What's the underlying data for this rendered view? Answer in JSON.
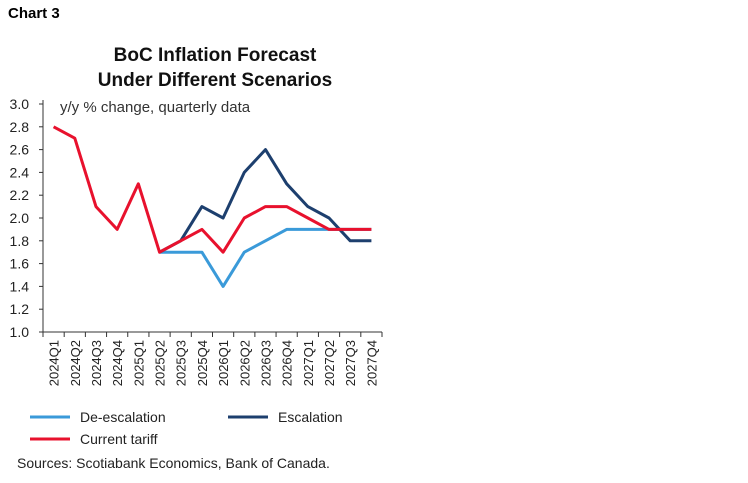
{
  "header": {
    "chart_label": "Chart 3",
    "source": "Sources: Scotiabank Economics, Bank of Canada."
  },
  "chart_data": {
    "type": "line",
    "title": "BoC Inflation Forecast Under Different Scenarios",
    "title_lines": [
      "BoC Inflation Forecast",
      "Under Different Scenarios"
    ],
    "annotation": "y/y % change, quarterly data",
    "categories": [
      "2024Q1",
      "2024Q2",
      "2024Q3",
      "2024Q4",
      "2025Q1",
      "2025Q2",
      "2025Q3",
      "2025Q4",
      "2026Q1",
      "2026Q2",
      "2026Q3",
      "2026Q4",
      "2027Q1",
      "2027Q2",
      "2027Q3",
      "2027Q4"
    ],
    "ylim": [
      1.0,
      3.0
    ],
    "yticks": [
      "1.0",
      "1.2",
      "1.4",
      "1.6",
      "1.8",
      "2.0",
      "2.2",
      "2.4",
      "2.6",
      "2.8",
      "3.0"
    ],
    "grid": false,
    "legend_position": "bottom",
    "series": [
      {
        "name": "De-escalation",
        "color": "#3a9ad9",
        "values": [
          null,
          null,
          null,
          null,
          null,
          1.7,
          1.7,
          1.7,
          1.4,
          1.7,
          1.8,
          1.9,
          1.9,
          1.9,
          1.9,
          1.9
        ]
      },
      {
        "name": "Escalation",
        "color": "#1d3f6e",
        "values": [
          null,
          null,
          null,
          null,
          null,
          1.7,
          1.8,
          2.1,
          2.0,
          2.4,
          2.6,
          2.3,
          2.1,
          2.0,
          1.8,
          1.8
        ]
      },
      {
        "name": "Current tariff",
        "color": "#e8112d",
        "values": [
          2.8,
          2.7,
          2.1,
          1.9,
          2.3,
          1.7,
          1.8,
          1.9,
          1.7,
          2.0,
          2.1,
          2.1,
          2.0,
          1.9,
          1.9,
          1.9
        ]
      }
    ]
  }
}
